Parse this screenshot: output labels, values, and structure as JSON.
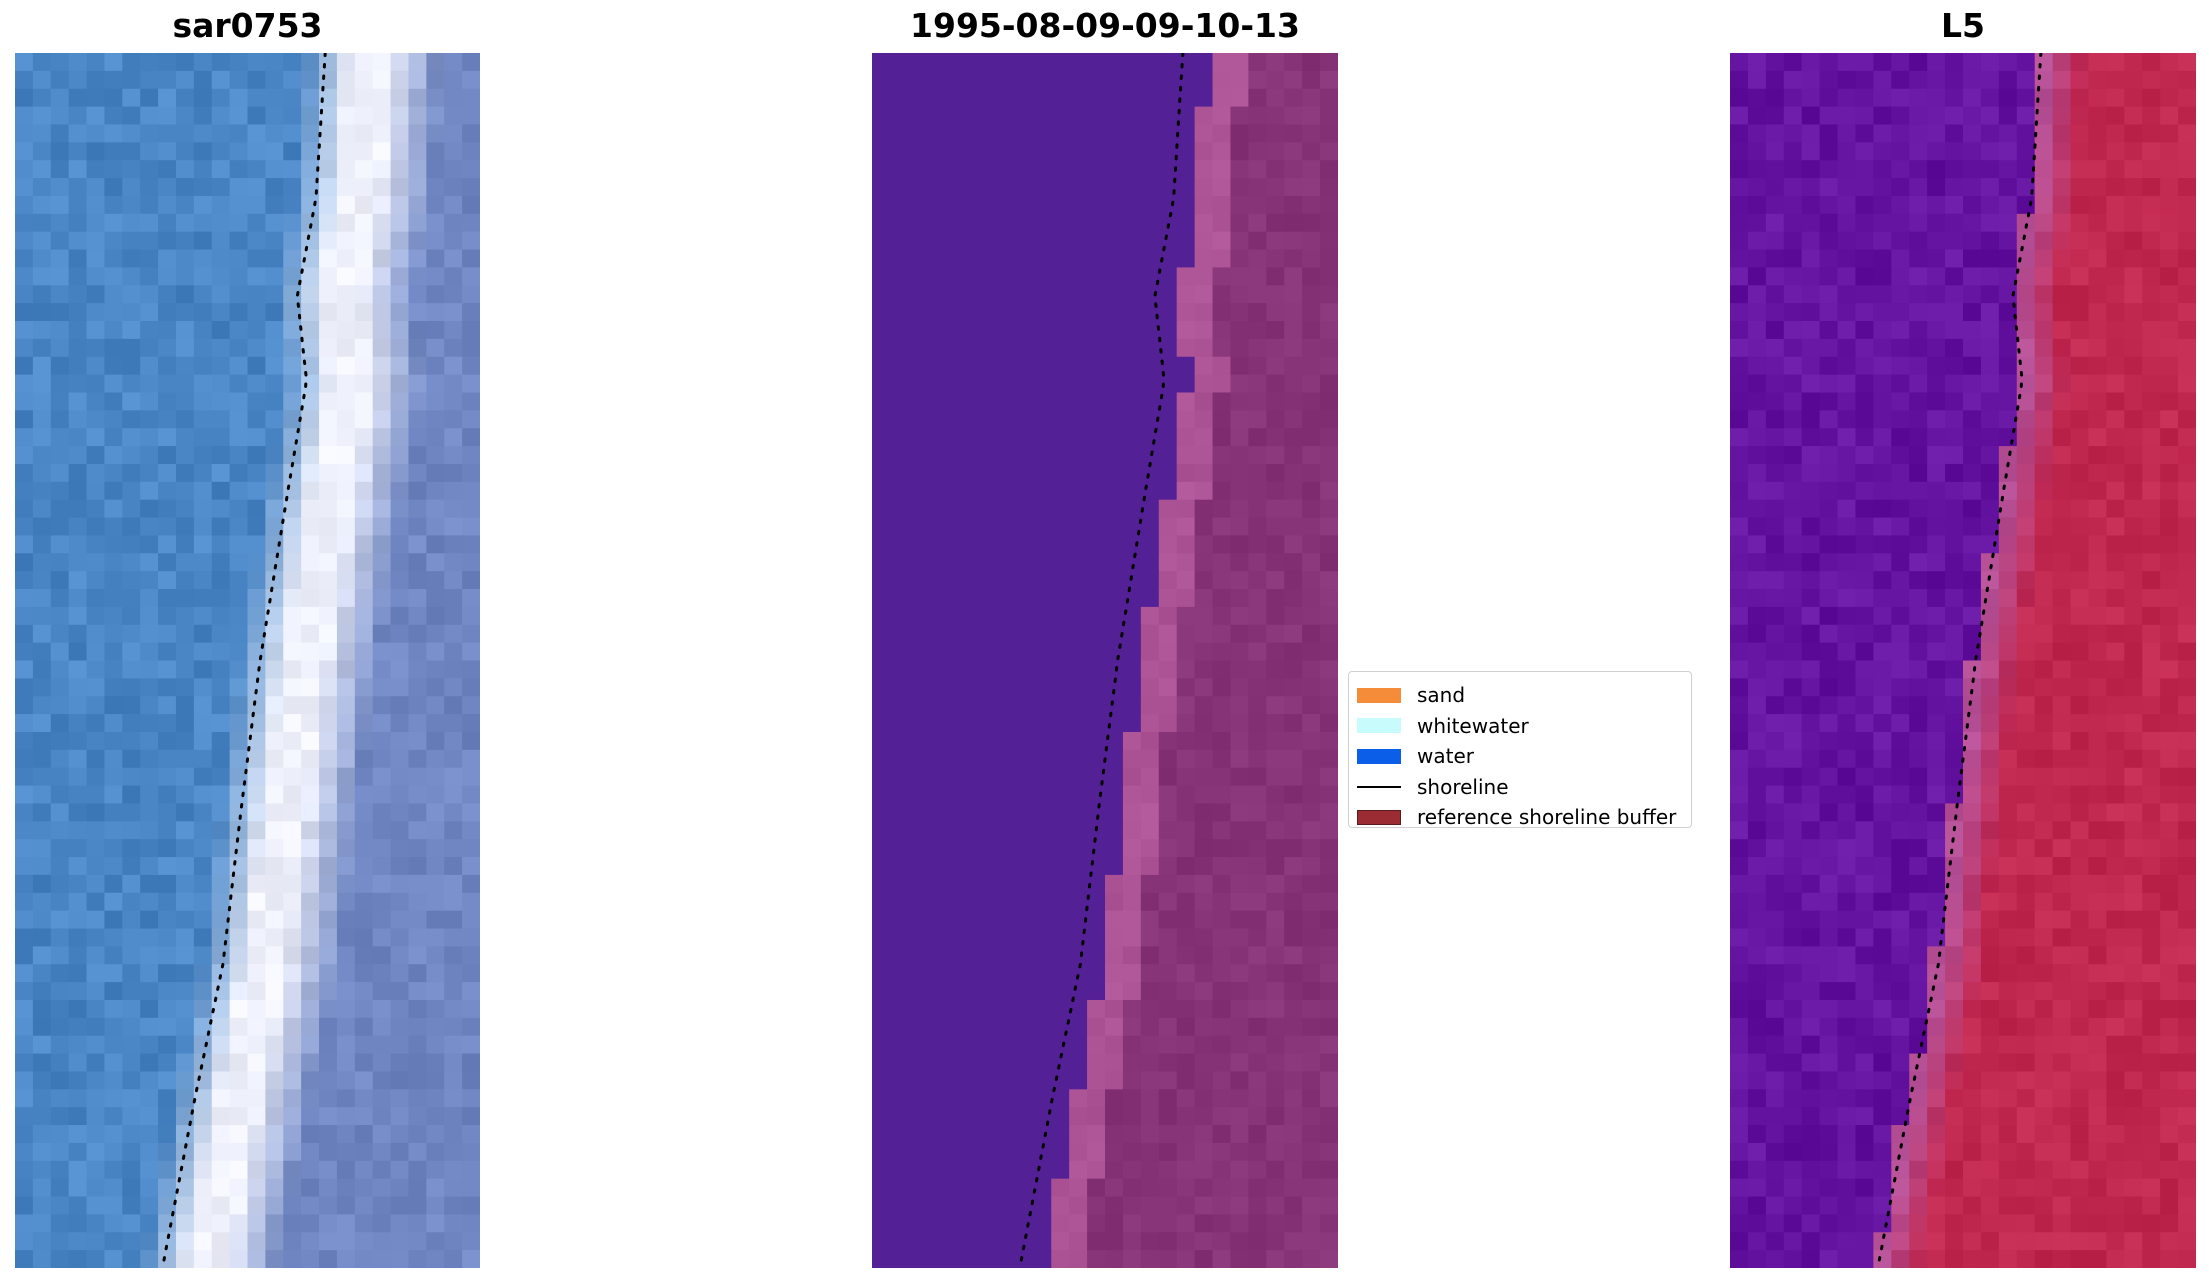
{
  "panels": [
    {
      "title": "sar0753",
      "kind": "rgb"
    },
    {
      "title": "1995-08-09-09-10-13",
      "kind": "classified"
    },
    {
      "title": "L5",
      "kind": "index"
    }
  ],
  "legend": {
    "items": [
      {
        "label": "sand",
        "color": "#f48c3a",
        "type": "patch"
      },
      {
        "label": "whitewater",
        "color": "#c8fcfc",
        "type": "patch"
      },
      {
        "label": "water",
        "color": "#0b5ee8",
        "type": "patch"
      },
      {
        "label": "shoreline",
        "color": "#000000",
        "type": "line"
      },
      {
        "label": "reference shoreline buffer",
        "color": "#9b2c34",
        "type": "patch",
        "edge": "#5a1a1e"
      }
    ]
  },
  "colors": {
    "rgb_water": "#4a86c6",
    "rgb_whitewater": "#eef0fb",
    "rgb_sand": "#6f86c2",
    "classified_water": "#542096",
    "classified_buffer": "#ad5496",
    "classified_sand": "#873378",
    "index_water": "#6412a0",
    "index_buffer": "#b65096",
    "index_sand": "#c02850"
  }
}
